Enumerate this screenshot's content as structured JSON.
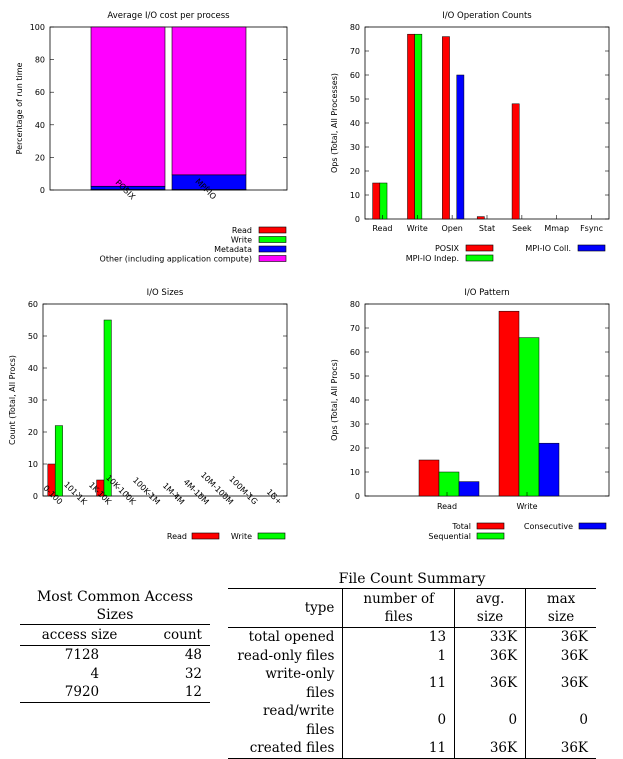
{
  "charts": {
    "cost": {
      "title": "Average I/O cost per process",
      "ylabel": "Percentage of run time",
      "categories": [
        "POSIX",
        "MPI-IO"
      ],
      "ylim": [
        0,
        100
      ],
      "yticks": [
        "0",
        "20",
        "40",
        "60",
        "80",
        "100"
      ],
      "series": [
        {
          "name": "Read",
          "color": "#ff0000",
          "values": [
            0.1,
            0.1
          ]
        },
        {
          "name": "Write",
          "color": "#00ff00",
          "values": [
            0.2,
            0.2
          ]
        },
        {
          "name": "Metadata",
          "color": "#0000ff",
          "values": [
            2,
            9
          ]
        },
        {
          "name": "Other (including application compute)",
          "color": "#ff00ff",
          "values": [
            97.7,
            90.7
          ]
        }
      ],
      "stacked": true
    },
    "ops": {
      "title": "I/O Operation Counts",
      "ylabel": "Ops (Total, All Processes)",
      "categories": [
        "Read",
        "Write",
        "Open",
        "Stat",
        "Seek",
        "Mmap",
        "Fsync"
      ],
      "ylim": [
        0,
        80
      ],
      "yticks": [
        "0",
        "10",
        "20",
        "30",
        "40",
        "50",
        "60",
        "70",
        "80"
      ],
      "series": [
        {
          "name": "POSIX",
          "color": "#ff0000",
          "values": [
            15,
            77,
            76,
            1,
            48,
            0,
            0
          ]
        },
        {
          "name": "MPI-IO Indep.",
          "color": "#00ff00",
          "values": [
            15,
            77,
            0,
            0,
            0,
            0,
            0
          ]
        },
        {
          "name": "MPI-IO Coll.",
          "color": "#0000ff",
          "values": [
            0,
            0,
            60,
            0,
            0,
            0,
            0
          ]
        }
      ]
    },
    "sizes": {
      "title": "I/O Sizes",
      "ylabel": "Count (Total, All Procs)",
      "categories": [
        "0-100",
        "101-1K",
        "1K-10K",
        "10K-100K",
        "100K-1M",
        "1M-4M",
        "4M-10M",
        "10M-100M",
        "100M-1G",
        "1G+"
      ],
      "ylim": [
        0,
        60
      ],
      "yticks": [
        "0",
        "10",
        "20",
        "30",
        "40",
        "50",
        "60"
      ],
      "series": [
        {
          "name": "Read",
          "color": "#ff0000",
          "values": [
            10,
            0,
            5,
            0,
            0,
            0,
            0,
            0,
            0,
            0
          ]
        },
        {
          "name": "Write",
          "color": "#00ff00",
          "values": [
            22,
            0,
            55,
            0,
            0,
            0,
            0,
            0,
            0,
            0
          ]
        }
      ]
    },
    "pattern": {
      "title": "I/O Pattern",
      "ylabel": "Ops (Total, All Procs)",
      "categories": [
        "Read",
        "Write"
      ],
      "ylim": [
        0,
        80
      ],
      "yticks": [
        "0",
        "10",
        "20",
        "30",
        "40",
        "50",
        "60",
        "70",
        "80"
      ],
      "series": [
        {
          "name": "Total",
          "color": "#ff0000",
          "values": [
            15,
            77
          ]
        },
        {
          "name": "Sequential",
          "color": "#00ff00",
          "values": [
            10,
            66
          ]
        },
        {
          "name": "Consecutive",
          "color": "#0000ff",
          "values": [
            6,
            22
          ]
        }
      ]
    }
  },
  "tables": {
    "access": {
      "caption": "Most Common Access Sizes",
      "headers": [
        "access size",
        "count"
      ],
      "rows": [
        [
          "7128",
          "48"
        ],
        [
          "4",
          "32"
        ],
        [
          "7920",
          "12"
        ]
      ]
    },
    "files": {
      "caption": "File Count Summary",
      "headers": [
        "type",
        "number of files",
        "avg. size",
        "max size"
      ],
      "rows": [
        [
          "total opened",
          "13",
          "33K",
          "36K"
        ],
        [
          "read-only files",
          "1",
          "36K",
          "36K"
        ],
        [
          "write-only files",
          "11",
          "36K",
          "36K"
        ],
        [
          "read/write files",
          "0",
          "0",
          "0"
        ],
        [
          "created files",
          "11",
          "36K",
          "36K"
        ]
      ]
    }
  }
}
